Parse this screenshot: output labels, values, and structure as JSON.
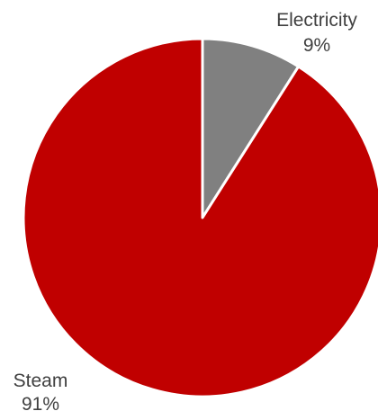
{
  "chart_data": {
    "type": "pie",
    "start_angle_deg": 0,
    "direction": "clockwise",
    "slices": [
      {
        "label": "Electricity",
        "value": 9,
        "value_text": "9%",
        "color": "#808080"
      },
      {
        "label": "Steam",
        "value": 91,
        "value_text": "91%",
        "color": "#C00000"
      }
    ],
    "slice_border_color": "#ffffff"
  }
}
